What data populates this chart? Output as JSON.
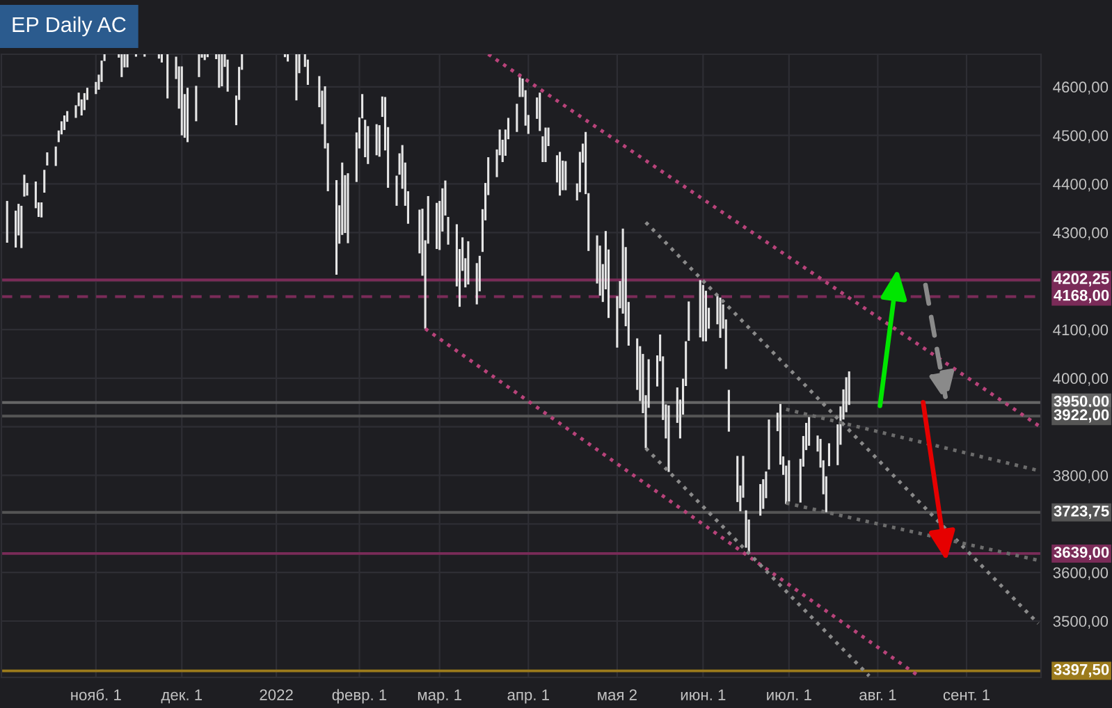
{
  "chart_data": {
    "type": "bar",
    "title": "EP Daily AC",
    "x": [
      "2021-10-01",
      "2021-10-04",
      "2021-10-05",
      "2021-10-06",
      "2021-10-07",
      "2021-10-08",
      "2021-10-11",
      "2021-10-12",
      "2021-10-13",
      "2021-10-14",
      "2021-10-15",
      "2021-10-18",
      "2021-10-19",
      "2021-10-20",
      "2021-10-21",
      "2021-10-22",
      "2021-10-25",
      "2021-10-26",
      "2021-10-27",
      "2021-10-28",
      "2021-10-29",
      "2021-11-01",
      "2021-11-02",
      "2021-11-03",
      "2021-11-04",
      "2021-11-05",
      "2021-11-08",
      "2021-11-09",
      "2021-11-10",
      "2021-11-11",
      "2021-11-12",
      "2021-11-15",
      "2021-11-16",
      "2021-11-17",
      "2021-11-18",
      "2021-11-19",
      "2021-11-22",
      "2021-11-23",
      "2021-11-24",
      "2021-11-26",
      "2021-11-29",
      "2021-11-30",
      "2021-12-01",
      "2021-12-02",
      "2021-12-03",
      "2021-12-06",
      "2021-12-07",
      "2021-12-08",
      "2021-12-09",
      "2021-12-10",
      "2021-12-13",
      "2021-12-14",
      "2021-12-15",
      "2021-12-16",
      "2021-12-17",
      "2021-12-20",
      "2021-12-21",
      "2021-12-22",
      "2021-12-23",
      "2021-12-27",
      "2021-12-28",
      "2021-12-29",
      "2021-12-30",
      "2021-12-31",
      "2022-01-03",
      "2022-01-04",
      "2022-01-05",
      "2022-01-06",
      "2022-01-07",
      "2022-01-10",
      "2022-01-11",
      "2022-01-12",
      "2022-01-13",
      "2022-01-14",
      "2022-01-18",
      "2022-01-19",
      "2022-01-20",
      "2022-01-21",
      "2022-01-24",
      "2022-01-25",
      "2022-01-26",
      "2022-01-27",
      "2022-01-28",
      "2022-01-31",
      "2022-02-01",
      "2022-02-02",
      "2022-02-03",
      "2022-02-04",
      "2022-02-07",
      "2022-02-08",
      "2022-02-09",
      "2022-02-10",
      "2022-02-11",
      "2022-02-14",
      "2022-02-15",
      "2022-02-16",
      "2022-02-17",
      "2022-02-18",
      "2022-02-22",
      "2022-02-23",
      "2022-02-24",
      "2022-02-25",
      "2022-02-28",
      "2022-03-01",
      "2022-03-02",
      "2022-03-03",
      "2022-03-04",
      "2022-03-07",
      "2022-03-08",
      "2022-03-09",
      "2022-03-10",
      "2022-03-11",
      "2022-03-14",
      "2022-03-15",
      "2022-03-16",
      "2022-03-17",
      "2022-03-18",
      "2022-03-21",
      "2022-03-22",
      "2022-03-23",
      "2022-03-24",
      "2022-03-25",
      "2022-03-28",
      "2022-03-29",
      "2022-03-30",
      "2022-03-31",
      "2022-04-01",
      "2022-04-04",
      "2022-04-05",
      "2022-04-06",
      "2022-04-07",
      "2022-04-08",
      "2022-04-11",
      "2022-04-12",
      "2022-04-13",
      "2022-04-14",
      "2022-04-18",
      "2022-04-19",
      "2022-04-20",
      "2022-04-21",
      "2022-04-22",
      "2022-04-25",
      "2022-04-26",
      "2022-04-27",
      "2022-04-28",
      "2022-04-29",
      "2022-05-02",
      "2022-05-03",
      "2022-05-04",
      "2022-05-05",
      "2022-05-06",
      "2022-05-09",
      "2022-05-10",
      "2022-05-11",
      "2022-05-12",
      "2022-05-13",
      "2022-05-16",
      "2022-05-17",
      "2022-05-18",
      "2022-05-19",
      "2022-05-20",
      "2022-05-23",
      "2022-05-24",
      "2022-05-25",
      "2022-05-26",
      "2022-05-27",
      "2022-05-31",
      "2022-06-01",
      "2022-06-02",
      "2022-06-03",
      "2022-06-06",
      "2022-06-07",
      "2022-06-08",
      "2022-06-09",
      "2022-06-10",
      "2022-06-13",
      "2022-06-14",
      "2022-06-15",
      "2022-06-16",
      "2022-06-17",
      "2022-06-21",
      "2022-06-22",
      "2022-06-23",
      "2022-06-24",
      "2022-06-27",
      "2022-06-28",
      "2022-06-29",
      "2022-06-30",
      "2022-07-01",
      "2022-07-05",
      "2022-07-06",
      "2022-07-07",
      "2022-07-08",
      "2022-07-11",
      "2022-07-12",
      "2022-07-13",
      "2022-07-14",
      "2022-07-15",
      "2022-07-18",
      "2022-07-19",
      "2022-07-20",
      "2022-07-21",
      "2022-07-22"
    ],
    "series": [
      {
        "color": "#e6e6e6",
        "base": [
          4279,
          4269,
          4294,
          4268,
          4374,
          4376,
          4350,
          4332,
          4331,
          4382,
          4438,
          4437,
          4486,
          4502,
          4511,
          4528,
          4536,
          4560,
          4541,
          4552,
          4573,
          4585,
          4594,
          4610,
          4653,
          null,
          null,
          4660,
          4620,
          4640,
          4640,
          4662,
          null,
          null,
          4662,
          null,
          null,
          4658,
          4650,
          4576,
          4616,
          4555,
          4500,
          4495,
          4486,
          4529,
          4620,
          4660,
          4655,
          4661,
          4657,
          4598,
          4601,
          4641,
          4590,
          4521,
          4573,
          4635,
          null,
          null,
          null,
          null,
          null,
          null,
          null,
          null,
          null,
          4661,
          4652,
          4572,
          4628,
          null,
          4641,
          4604,
          4558,
          4523,
          4473,
          4385,
          4213,
          4277,
          4295,
          4299,
          4278,
          4404,
          4473,
          4535,
          4455,
          4441,
          4459,
          4456,
          4538,
          4469,
          4392,
          4355,
          4419,
          4390,
          4355,
          4318,
          4257,
          4211,
          4102,
          4277,
          4266,
          4264,
          4302,
          4335,
          4275,
          4189,
          4147,
          4221,
          4187,
          4193,
          4152,
          4179,
          4260,
          4325,
          4377,
          4414,
          4459,
          4445,
          4458,
          4492,
          4507,
          4579,
          4579,
          4520,
          4503,
          4534,
          4509,
          4445,
          4445,
          4478,
          4403,
          4376,
          4387,
          4387,
          4366,
          4383,
          4444,
          4379,
          4262,
          4195,
          4170,
          4157,
          4183,
          4124,
          4063,
          4144,
          4133,
          4107,
          4067,
          3976,
          3953,
          3928,
          3856,
          3939,
          3983,
          4035,
          3914,
          3876,
          3807,
          3908,
          3876,
          3925,
          3984,
          4077,
          4084,
          4076,
          4076,
          4102,
          4111,
          4083,
          4102,
          4019,
          3890,
          3745,
          3726,
          3754,
          3651,
          3639,
          3717,
          3731,
          3753,
          3812,
          3891,
          3822,
          3801,
          3741,
          3746,
          3744,
          3818,
          3852,
          3861,
          3849,
          3816,
          3761,
          3724,
          3819,
          3821,
          3863,
          3915,
          3930,
          3945
        ],
        "values": [
          86,
          76,
          65,
          87,
          45,
          26,
          55,
          30,
          31,
          47,
          27,
          40,
          24,
          27,
          30,
          22,
          26,
          28,
          33,
          35,
          25,
          25,
          31,
          44,
          14,
          null,
          null,
          7,
          47,
          27,
          27,
          5,
          null,
          null,
          5,
          null,
          null,
          9,
          17,
          91,
          46,
          87,
          142,
          90,
          112,
          73,
          47,
          7,
          12,
          6,
          10,
          69,
          66,
          26,
          66,
          61,
          68,
          32,
          null,
          null,
          null,
          null,
          null,
          null,
          null,
          null,
          null,
          6,
          15,
          95,
          39,
          null,
          26,
          52,
          64,
          69,
          128,
          99,
          195,
          79,
          149,
          119,
          144,
          102,
          64,
          50,
          77,
          78,
          64,
          65,
          42,
          110,
          125,
          62,
          44,
          90,
          89,
          67,
          90,
          138,
          182,
          98,
          95,
          101,
          89,
          72,
          57,
          128,
          119,
          69,
          60,
          89,
          85,
          73,
          88,
          77,
          78,
          57,
          53,
          46,
          54,
          44,
          58,
          48,
          38,
          73,
          39,
          44,
          79,
          53,
          71,
          38,
          56,
          90,
          61,
          60,
          35,
          83,
          39,
          128,
          119,
          99,
          103,
          78,
          120,
          141,
          106,
          56,
          175,
          163,
          90,
          106,
          113,
          122,
          109,
          100,
          64,
          55,
          131,
          70,
          137,
          73,
          80,
          74,
          92,
          81,
          118,
          116,
          104,
          43,
          59,
          83,
          50,
          102,
          86,
          95,
          53,
          86,
          77,
          70,
          65,
          61,
          55,
          103,
          38,
          125,
          38,
          79,
          85,
          90,
          63,
          56,
          59,
          33,
          59,
          70,
          74,
          47,
          84,
          79,
          62,
          72,
          69
        ]
      },
      {
        "type": "line",
        "x": [
          "2022-03-18",
          "2022-09-27"
        ],
        "values": [
          4667,
          3899
        ],
        "color": "#b8437a",
        "line_style": "dotted"
      },
      {
        "type": "line",
        "x": [
          "2022-02-24",
          "2022-08-15"
        ],
        "values": [
          4102,
          3388
        ],
        "color": "#b8437a",
        "line_style": "dotted"
      },
      {
        "type": "line",
        "x": [
          "2022-05-12",
          "2022-09-26"
        ],
        "values": [
          4321,
          3495
        ],
        "color": "#8a8a8a",
        "line_style": "dotted"
      },
      {
        "type": "line",
        "x": [
          "2022-05-12",
          "2022-07-29"
        ],
        "values": [
          3856,
          3387
        ],
        "color": "#8a8a8a",
        "line_style": "dotted"
      },
      {
        "type": "line",
        "x": [
          "2022-06-30",
          "2022-09-26"
        ],
        "values": [
          3936,
          3810
        ],
        "color": "#6c6c6c",
        "line_style": "dotted"
      },
      {
        "type": "line",
        "x": [
          "2022-06-30",
          "2022-09-26"
        ],
        "values": [
          3743,
          3625
        ],
        "color": "#6c6c6c",
        "line_style": "dotted"
      }
    ],
    "ref_lines": [
      {
        "axis": "y",
        "value": 4202.25,
        "label": "4202,25",
        "color": "#7a2b58",
        "line_style": "solid"
      },
      {
        "axis": "y",
        "value": 4168,
        "label": "4168,00",
        "color": "#7a2b58",
        "line_style": "dashed"
      },
      {
        "axis": "y",
        "value": 3950,
        "label": "3950,00",
        "color": "#666666",
        "line_style": "solid"
      },
      {
        "axis": "y",
        "value": 3922,
        "label": "3922,00",
        "color": "#555555",
        "line_style": "solid"
      },
      {
        "axis": "y",
        "value": 3723.75,
        "label": "3723,75",
        "color": "#555555",
        "line_style": "solid"
      },
      {
        "axis": "y",
        "value": 3639,
        "label": "3639,00",
        "color": "#7a2b58",
        "line_style": "solid"
      },
      {
        "axis": "y",
        "value": 3397.5,
        "label": "3397,50",
        "color": "#9c7b1c",
        "line_style": "solid"
      }
    ],
    "xlim": [
      "2021-09-29",
      "2022-09-27"
    ],
    "xticks": [
      {
        "value": "2021-11-01",
        "label": "нояб. 1"
      },
      {
        "value": "2021-12-01",
        "label": "дек. 1"
      },
      {
        "value": "2022-01-03",
        "label": "2022"
      },
      {
        "value": "2022-02-01",
        "label": "февр. 1"
      },
      {
        "value": "2022-03-01",
        "label": "мар. 1"
      },
      {
        "value": "2022-04-01",
        "label": "апр. 1"
      },
      {
        "value": "2022-05-02",
        "label": "мая 2"
      },
      {
        "value": "2022-06-01",
        "label": "июн. 1"
      },
      {
        "value": "2022-07-01",
        "label": "июл. 1"
      },
      {
        "value": "2022-08-01",
        "label": "авг. 1"
      },
      {
        "value": "2022-09-01",
        "label": "сент. 1"
      }
    ],
    "ylim": [
      3384,
      4667
    ],
    "yticks": [
      {
        "value": 3500,
        "label": "3500,00"
      },
      {
        "value": 3600,
        "label": "3600,00"
      },
      {
        "value": 3700,
        "label": null
      },
      {
        "value": 3800,
        "label": "3800,00"
      },
      {
        "value": 3900,
        "label": null
      },
      {
        "value": 4000,
        "label": "4000,00"
      },
      {
        "value": 4100,
        "label": "4100,00"
      },
      {
        "value": 4200,
        "label": null
      },
      {
        "value": 4300,
        "label": "4300,00"
      },
      {
        "value": 4400,
        "label": "4400,00"
      },
      {
        "value": 4500,
        "label": "4500,00"
      },
      {
        "value": 4600,
        "label": "4600,00"
      }
    ],
    "grid": true
  }
}
